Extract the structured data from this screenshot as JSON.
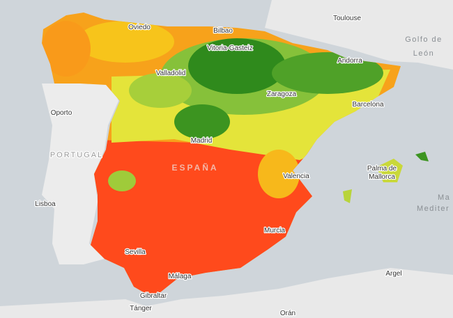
{
  "map": {
    "places": [
      "Oviedo",
      "Bilbao",
      "Vitoria-Gasteiz",
      "Toulouse",
      "Golfo de",
      "León",
      "Andorra",
      "Valladolid",
      "Zaragoza",
      "Barcelona",
      "Oporto",
      "PORTUGAL",
      "Madrid",
      "ESPAÑA",
      "Valencia",
      "Palma de",
      "Mallorca",
      "Ma",
      "Lisboa",
      "Mediter",
      "Murcia",
      "Sevilla",
      "Málaga",
      "Gibraltar",
      "Argel",
      "Tánger",
      "Orán"
    ]
  }
}
